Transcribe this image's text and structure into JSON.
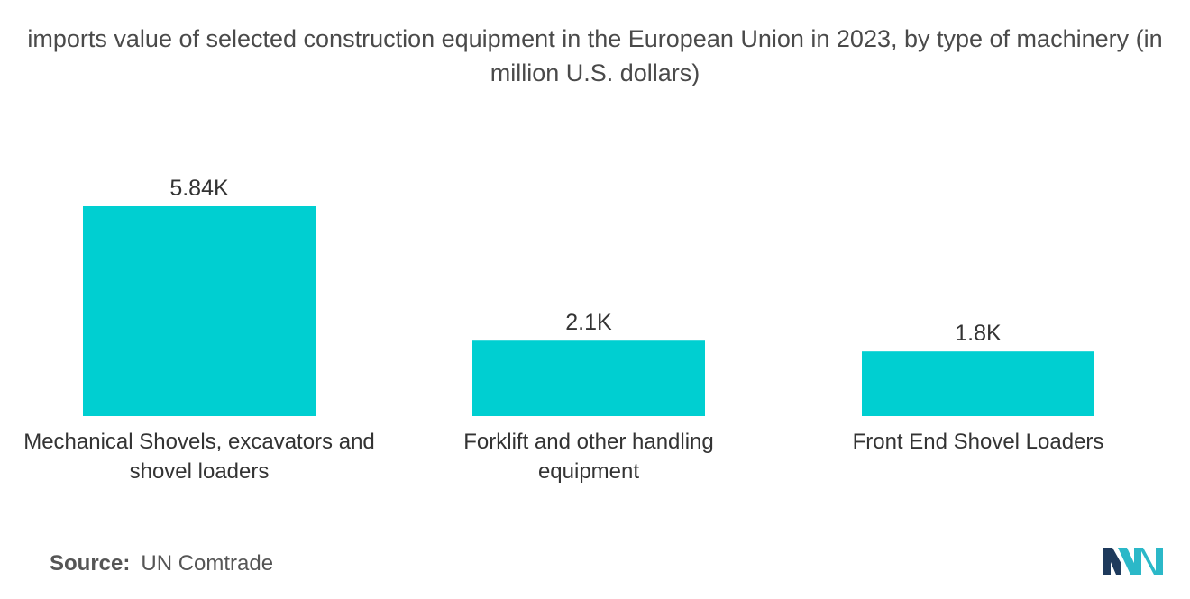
{
  "chart_data": {
    "type": "bar",
    "title": "imports value of selected construction equipment in the European Union in 2023, by type of machinery (in million U.S. dollars)",
    "categories": [
      "Mechanical Shovels, excavators and shovel loaders",
      "Forklift and other handling equipment",
      "Front End Shovel Loaders"
    ],
    "category_lines": [
      [
        "Mechanical Shovels, excavators and",
        "shovel loaders"
      ],
      [
        "Forklift and other handling",
        "equipment"
      ],
      [
        "Front End Shovel Loaders"
      ]
    ],
    "values": [
      5840,
      2100,
      1800
    ],
    "data_labels": [
      "5.84K",
      "2.1K",
      "1.8K"
    ],
    "xlabel": "",
    "ylabel": "",
    "grid": false,
    "legend": "none",
    "bar_color": "#00cfd1"
  },
  "source": {
    "label": "Source:",
    "value": "UN Comtrade"
  },
  "logo": {
    "icon": "mordor-intelligence-logo-icon",
    "colors": [
      "#1e3a5c",
      "#2bb8c8"
    ]
  }
}
